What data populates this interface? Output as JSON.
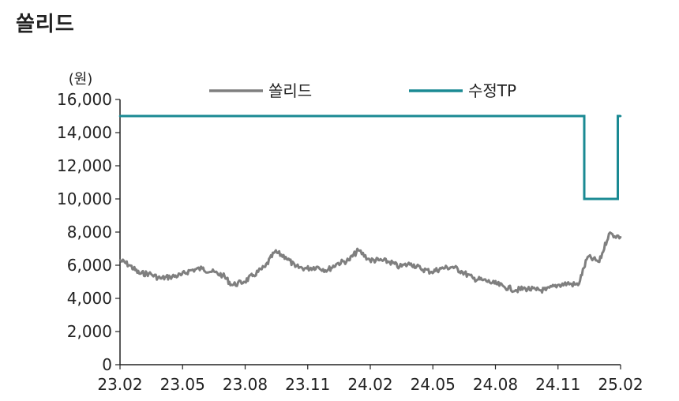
{
  "title": "쏠리드",
  "chart_data": {
    "type": "line",
    "title": "쏠리드",
    "unit": "(원)",
    "xlabel": "",
    "ylabel": "",
    "ylim": [
      0,
      16000
    ],
    "yticks": [
      0,
      2000,
      4000,
      6000,
      8000,
      10000,
      12000,
      14000,
      16000
    ],
    "ytick_labels": [
      "0",
      "2,000",
      "4,000",
      "6,000",
      "8,000",
      "10,000",
      "12,000",
      "14,000",
      "16,000"
    ],
    "xticks": [
      "23.02",
      "23.05",
      "23.08",
      "23.11",
      "24.02",
      "24.05",
      "24.08",
      "24.11",
      "25.02"
    ],
    "grid": false,
    "legend_position": "top",
    "series": [
      {
        "name": "쏠리드",
        "color": "#7f7f7f",
        "x": [
          "2023-02-01",
          "2023-02-15",
          "2023-03-01",
          "2023-03-15",
          "2023-04-01",
          "2023-04-15",
          "2023-05-01",
          "2023-05-15",
          "2023-06-01",
          "2023-06-15",
          "2023-07-01",
          "2023-07-15",
          "2023-08-01",
          "2023-08-15",
          "2023-09-01",
          "2023-09-15",
          "2023-10-01",
          "2023-10-15",
          "2023-11-01",
          "2023-11-15",
          "2023-12-01",
          "2023-12-15",
          "2024-01-01",
          "2024-01-15",
          "2024-02-01",
          "2024-02-15",
          "2024-03-01",
          "2024-03-15",
          "2024-04-01",
          "2024-04-15",
          "2024-05-01",
          "2024-05-15",
          "2024-06-01",
          "2024-06-15",
          "2024-07-01",
          "2024-07-15",
          "2024-08-01",
          "2024-08-15",
          "2024-09-01",
          "2024-09-15",
          "2024-10-01",
          "2024-10-15",
          "2024-11-01",
          "2024-11-15",
          "2024-12-01",
          "2024-12-15",
          "2025-01-01",
          "2025-01-15",
          "2025-02-01"
        ],
        "values": [
          6300,
          6000,
          5500,
          5500,
          5200,
          5300,
          5400,
          5700,
          5800,
          5600,
          5400,
          4800,
          5000,
          5400,
          5900,
          6800,
          6500,
          5900,
          5800,
          5900,
          5700,
          6100,
          6300,
          6900,
          6300,
          6300,
          6200,
          5900,
          6100,
          5800,
          5600,
          5800,
          5900,
          5600,
          5200,
          5100,
          4900,
          4700,
          4500,
          4600,
          4500,
          4500,
          4800,
          4900,
          4800,
          6500,
          6200,
          7900,
          7700
        ]
      },
      {
        "name": "수정TP",
        "color": "#1a8a93",
        "x": [
          "2023-02-01",
          "2024-12-10",
          "2024-12-10",
          "2025-01-28",
          "2025-01-28",
          "2025-02-01"
        ],
        "values": [
          15000,
          15000,
          10000,
          10000,
          15000,
          15000
        ]
      }
    ]
  }
}
